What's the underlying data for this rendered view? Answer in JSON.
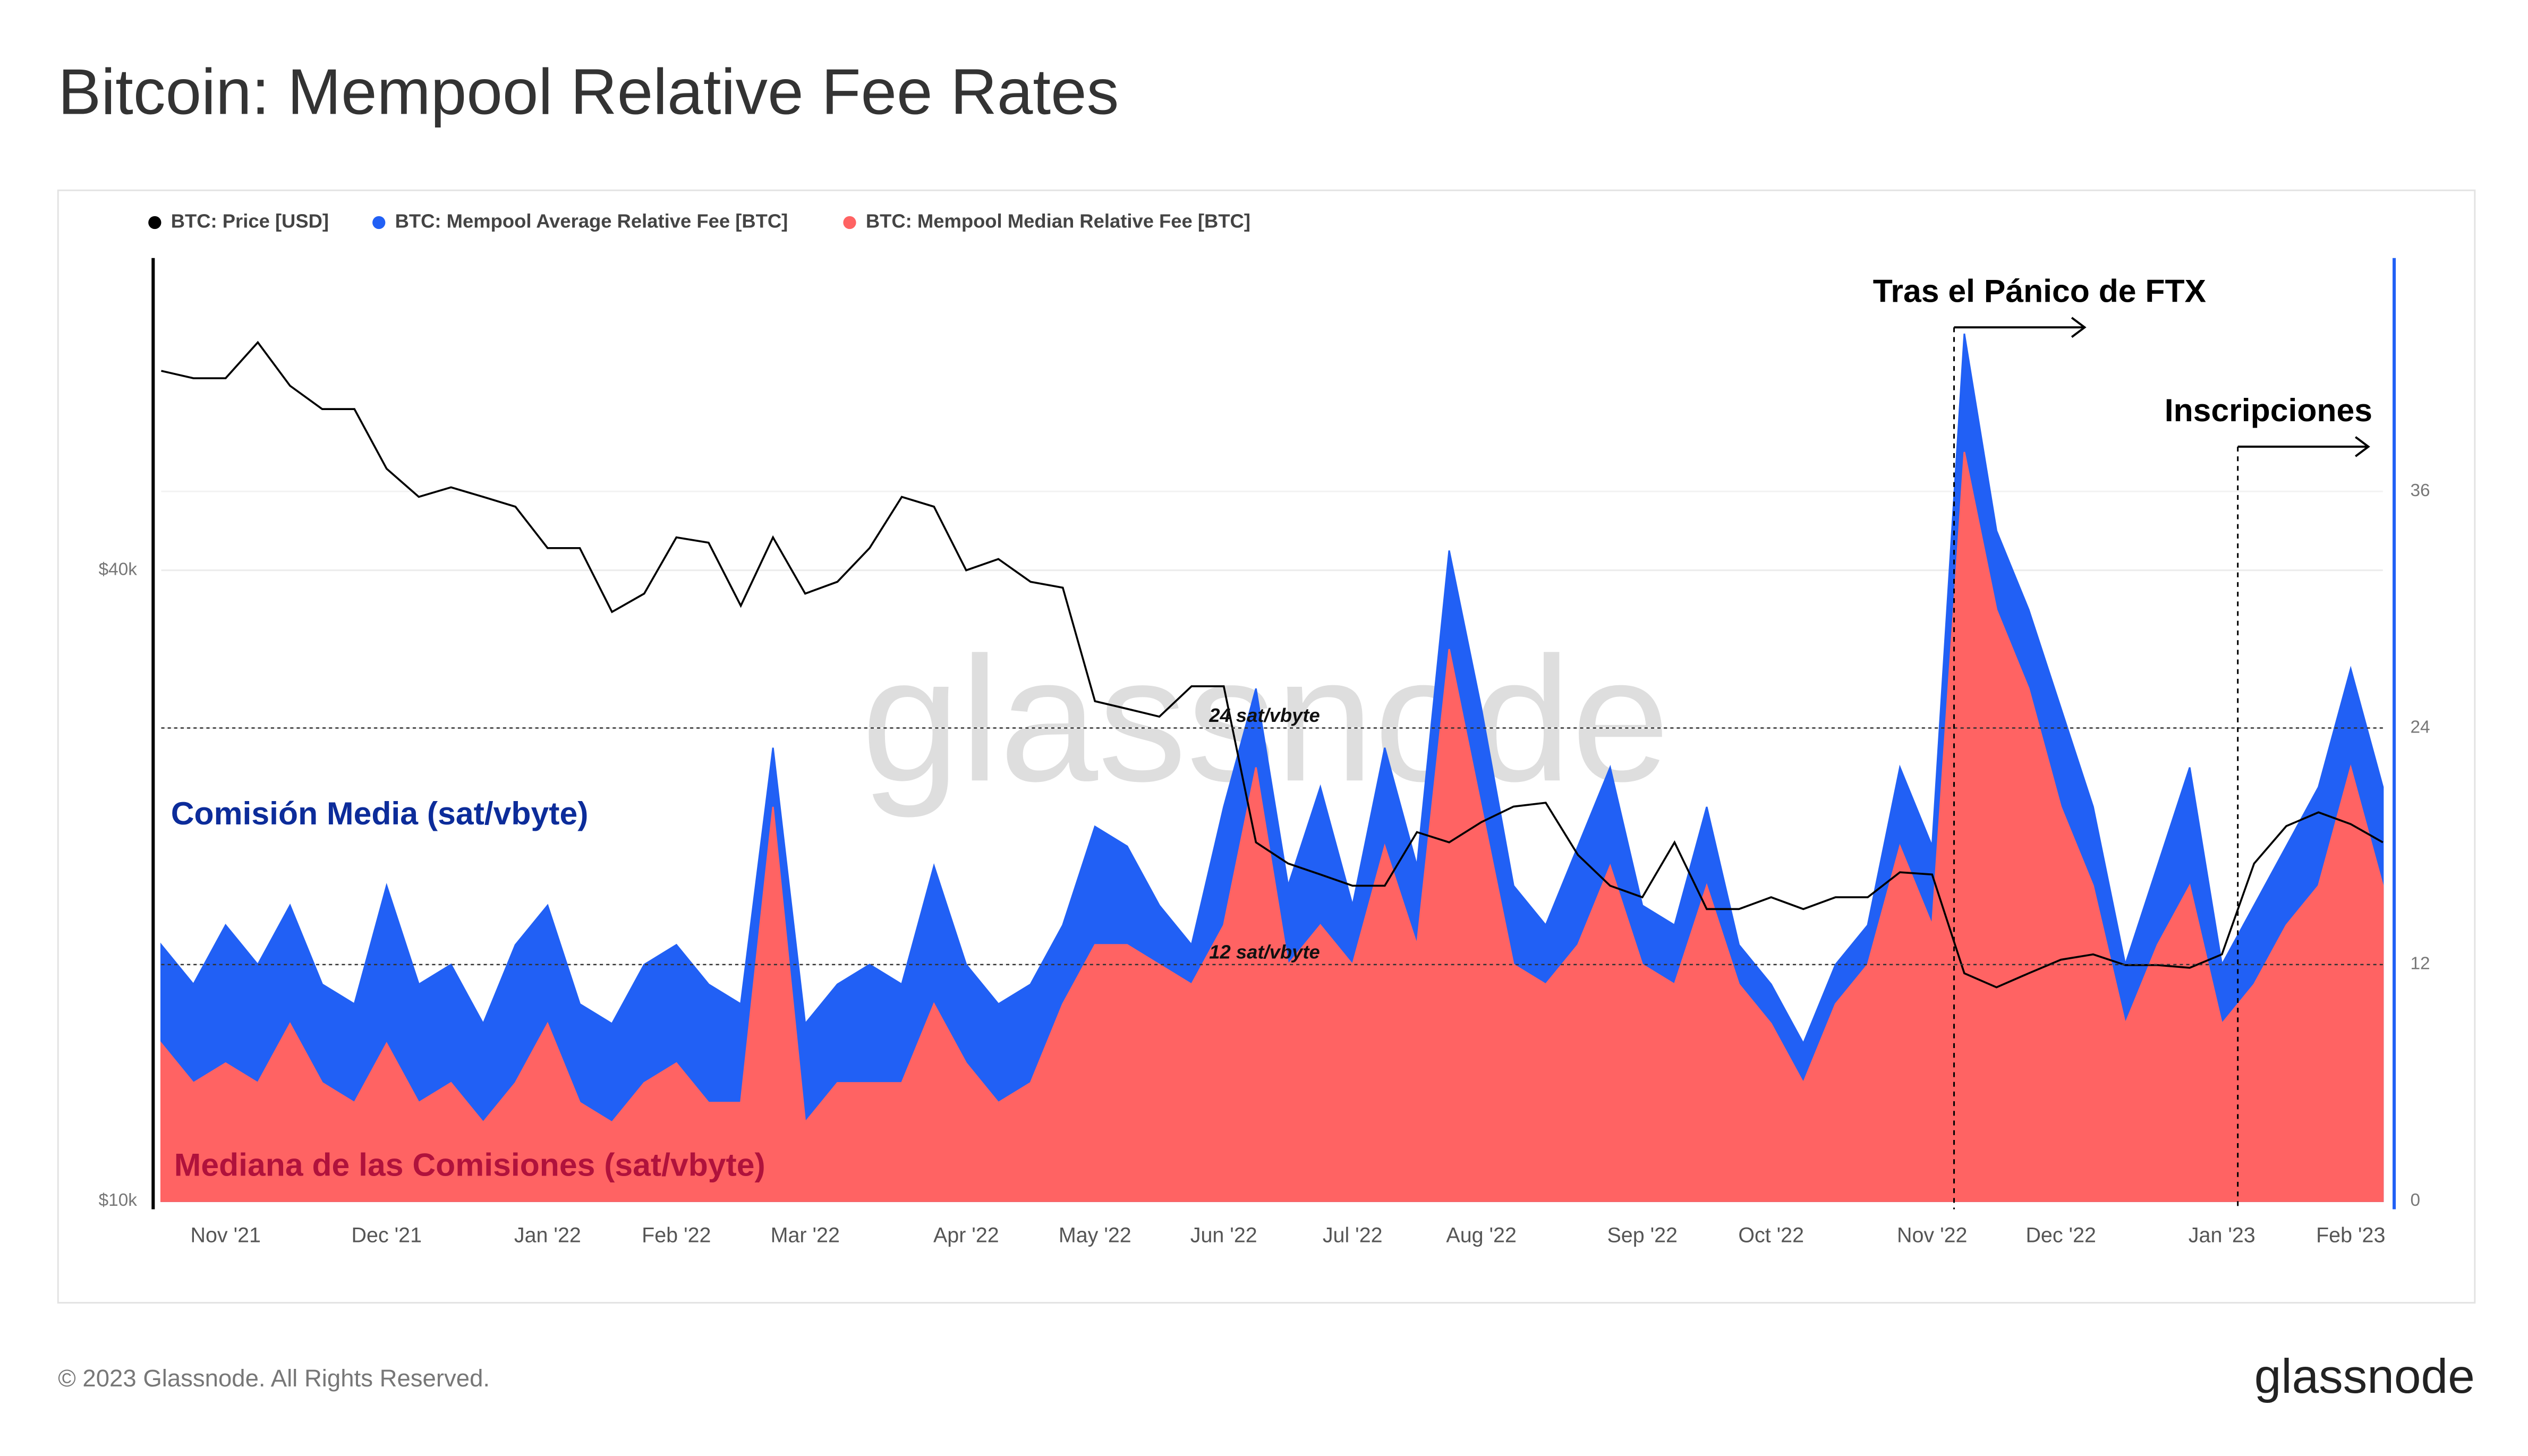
{
  "title": "Bitcoin: Mempool Relative Fee Rates",
  "footer": "© 2023 Glassnode. All Rights Reserved.",
  "logo": "glassnode",
  "watermark": "glassnode",
  "chart_data": {
    "type": "line",
    "categories": [
      null,
      null,
      "Nov '21",
      null,
      null,
      null,
      null,
      "Dec '21",
      null,
      null,
      null,
      null,
      "Jan '22",
      null,
      null,
      null,
      "Feb '22",
      null,
      null,
      null,
      "Mar '22",
      null,
      null,
      null,
      null,
      "Apr '22",
      null,
      null,
      null,
      "May '22",
      null,
      null,
      null,
      "Jun '22",
      null,
      null,
      null,
      "Jul '22",
      null,
      null,
      null,
      "Aug '22",
      null,
      null,
      null,
      null,
      "Sep '22",
      null,
      null,
      null,
      "Oct '22",
      null,
      null,
      null,
      null,
      "Nov '22",
      null,
      null,
      null,
      "Dec '22",
      null,
      null,
      null,
      null,
      "Jan '23",
      null,
      null,
      null,
      "Feb '23",
      null
    ],
    "series": [
      {
        "name": "BTC: Price [USD]",
        "color": "#000000",
        "axis": "y",
        "values": [
          62000,
          61000,
          61000,
          66000,
          60000,
          57000,
          57000,
          50000,
          47000,
          48000,
          47000,
          46000,
          42000,
          42000,
          36500,
          38000,
          43000,
          42500,
          37000,
          43000,
          38000,
          39000,
          42000,
          47000,
          46000,
          40000,
          41000,
          39000,
          38500,
          30000,
          29500,
          29000,
          31000,
          31000,
          22000,
          21000,
          20500,
          20000,
          20000,
          22500,
          22000,
          23000,
          23800,
          24000,
          21400,
          20000,
          19500,
          22000,
          19000,
          19000,
          19500,
          19000,
          19500,
          19500,
          20600,
          20500,
          16500,
          16000,
          16500,
          17000,
          17200,
          16800,
          16800,
          16700,
          17200,
          21000,
          22800,
          23500,
          22900,
          22000
        ]
      },
      {
        "name": "BTC: Mempool Average Relative Fee [BTC]",
        "color": "#2160f5",
        "axis": "y2",
        "values": [
          13,
          11,
          14,
          12,
          15,
          11,
          10,
          16,
          11,
          12,
          9,
          13,
          15,
          10,
          9,
          12,
          13,
          11,
          10,
          23,
          9,
          11,
          12,
          11,
          17,
          12,
          10,
          11,
          14,
          19,
          18,
          15,
          13,
          20,
          26,
          16,
          21,
          15,
          23,
          17,
          33,
          25,
          16,
          14,
          18,
          22,
          15,
          14,
          20,
          13,
          11,
          8,
          12,
          14,
          22,
          18,
          44,
          34,
          30,
          25,
          20,
          12,
          17,
          22,
          12,
          15,
          18,
          21,
          27,
          21
        ]
      },
      {
        "name": "BTC: Mempool Median Relative Fee [BTC]",
        "color": "#ff6363",
        "axis": "y2",
        "values": [
          8,
          6,
          7,
          6,
          9,
          6,
          5,
          8,
          5,
          6,
          4,
          6,
          9,
          5,
          4,
          6,
          7,
          5,
          5,
          20,
          4,
          6,
          6,
          6,
          10,
          7,
          5,
          6,
          10,
          13,
          13,
          12,
          11,
          14,
          22,
          12,
          14,
          12,
          18,
          13,
          28,
          20,
          12,
          11,
          13,
          17,
          12,
          11,
          16,
          11,
          9,
          6,
          10,
          12,
          18,
          14,
          38,
          30,
          26,
          20,
          16,
          9,
          13,
          16,
          9,
          11,
          14,
          16,
          22,
          16
        ]
      }
    ],
    "log_scale": true,
    "ylim": [
      10000,
      80000
    ],
    "yticks": [
      {
        "value": 10000,
        "label": "$10k"
      },
      {
        "value": 40000,
        "label": "$40k"
      }
    ],
    "y2lim": [
      0,
      48
    ],
    "y2ticks": [
      0,
      12,
      24,
      36
    ],
    "reference_lines": [
      {
        "value": 24,
        "label": "24 sat/vbyte"
      },
      {
        "value": 12,
        "label": "12 sat/vbyte"
      }
    ],
    "annotations": [
      "Tras el Pánico de FTX",
      "Inscripciones"
    ],
    "area_labels": [
      "Comisión Media (sat/vbyte)",
      "Mediana de las Comisiones (sat/vbyte)"
    ],
    "grid": true
  }
}
